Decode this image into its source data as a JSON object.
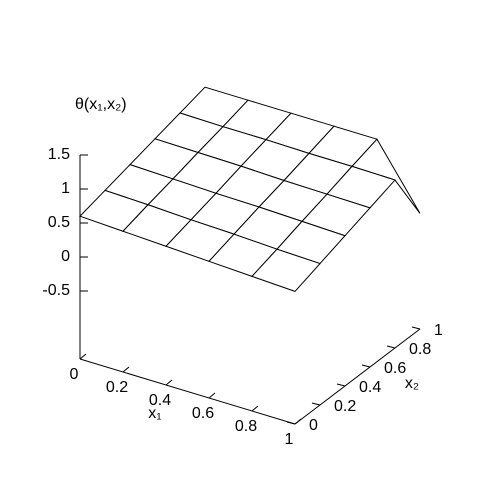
{
  "chart_data": {
    "type": "surface",
    "z_label": "θ(x₁,x₂)",
    "x1_label": "x₁",
    "x2_label": "x₂",
    "x1": [
      0,
      0.2,
      0.4,
      0.6,
      0.8,
      1
    ],
    "x2": [
      0,
      0.2,
      0.4,
      0.6,
      0.8,
      1
    ],
    "z": [
      [
        0.6,
        0.7,
        0.8,
        0.9,
        1.0,
        1.1
      ],
      [
        0.57,
        0.68,
        0.78,
        0.89,
        0.99,
        1.1
      ],
      [
        0.54,
        0.65,
        0.76,
        0.88,
        0.99,
        1.1
      ],
      [
        0.51,
        0.63,
        0.75,
        0.86,
        0.98,
        1.1
      ],
      [
        0.48,
        0.6,
        0.73,
        0.85,
        0.98,
        1.1
      ],
      [
        0.45,
        0.58,
        0.71,
        0.84,
        0.97,
        0.2
      ]
    ],
    "x1lim": [
      0,
      1
    ],
    "x2lim": [
      0,
      1
    ],
    "zlim": [
      -1.5,
      1.5
    ],
    "x1ticks": [
      0,
      0.2,
      0.4,
      0.6,
      0.8,
      1
    ],
    "x2ticks": [
      0,
      0.2,
      0.4,
      0.6,
      0.8,
      1
    ],
    "zticks": [
      -0.5,
      0,
      0.5,
      1,
      1.5
    ],
    "color": "#000000"
  }
}
